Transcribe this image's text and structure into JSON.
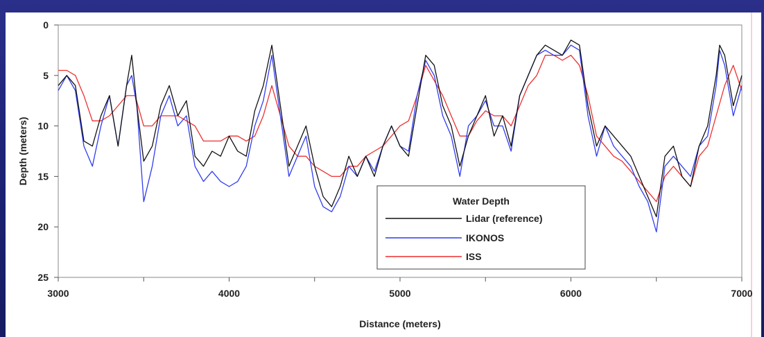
{
  "chart_data": {
    "type": "line",
    "title": "",
    "xlabel": "Distance (meters)",
    "ylabel": "Depth (meters)",
    "xlim": [
      3000,
      7000
    ],
    "ylim": [
      0,
      25
    ],
    "y_inverted": true,
    "x_ticks": [
      "3000",
      "4000",
      "5000",
      "6000",
      "7000"
    ],
    "y_ticks": [
      "0",
      "5",
      "10",
      "15",
      "20",
      "25"
    ],
    "grid": false,
    "legend": {
      "title": "Water Depth",
      "placement": "bottom-center"
    },
    "colors": {
      "lidar": "#111111",
      "ikonos": "#2f3cf0",
      "iss": "#ee2f2f"
    },
    "series": [
      {
        "name": "Lidar (reference)",
        "color": "#111111",
        "points": [
          [
            3000,
            6
          ],
          [
            3050,
            5
          ],
          [
            3100,
            6
          ],
          [
            3150,
            11.5
          ],
          [
            3200,
            12
          ],
          [
            3250,
            9
          ],
          [
            3300,
            7
          ],
          [
            3350,
            12
          ],
          [
            3400,
            6
          ],
          [
            3430,
            3
          ],
          [
            3460,
            8
          ],
          [
            3500,
            13.5
          ],
          [
            3550,
            12
          ],
          [
            3600,
            8
          ],
          [
            3650,
            6
          ],
          [
            3700,
            9
          ],
          [
            3750,
            7.5
          ],
          [
            3800,
            13
          ],
          [
            3850,
            14
          ],
          [
            3900,
            12.5
          ],
          [
            3950,
            13
          ],
          [
            4000,
            11
          ],
          [
            4050,
            12.5
          ],
          [
            4100,
            13
          ],
          [
            4150,
            8.5
          ],
          [
            4200,
            6
          ],
          [
            4250,
            2
          ],
          [
            4300,
            8
          ],
          [
            4350,
            14
          ],
          [
            4400,
            12
          ],
          [
            4450,
            10
          ],
          [
            4500,
            14
          ],
          [
            4550,
            17
          ],
          [
            4600,
            18
          ],
          [
            4650,
            16
          ],
          [
            4700,
            13
          ],
          [
            4750,
            15
          ],
          [
            4800,
            13
          ],
          [
            4850,
            15
          ],
          [
            4900,
            12
          ],
          [
            4950,
            10
          ],
          [
            5000,
            12
          ],
          [
            5050,
            13
          ],
          [
            5100,
            8
          ],
          [
            5150,
            3
          ],
          [
            5200,
            4
          ],
          [
            5250,
            8
          ],
          [
            5300,
            10
          ],
          [
            5350,
            14
          ],
          [
            5400,
            11
          ],
          [
            5450,
            9
          ],
          [
            5500,
            7
          ],
          [
            5550,
            11
          ],
          [
            5600,
            9
          ],
          [
            5650,
            12
          ],
          [
            5700,
            7
          ],
          [
            5750,
            5
          ],
          [
            5800,
            3
          ],
          [
            5850,
            2
          ],
          [
            5900,
            2.5
          ],
          [
            5950,
            3
          ],
          [
            6000,
            1.5
          ],
          [
            6050,
            2
          ],
          [
            6100,
            8
          ],
          [
            6150,
            12
          ],
          [
            6200,
            10
          ],
          [
            6250,
            11
          ],
          [
            6300,
            12
          ],
          [
            6350,
            13
          ],
          [
            6400,
            15
          ],
          [
            6450,
            17
          ],
          [
            6500,
            19
          ],
          [
            6550,
            13
          ],
          [
            6600,
            12
          ],
          [
            6650,
            15
          ],
          [
            6700,
            16
          ],
          [
            6750,
            12
          ],
          [
            6800,
            10
          ],
          [
            6850,
            5
          ],
          [
            6870,
            2
          ],
          [
            6900,
            3
          ],
          [
            6950,
            8
          ],
          [
            7000,
            5
          ]
        ]
      },
      {
        "name": "IKONOS",
        "color": "#2f3cf0",
        "points": [
          [
            3000,
            6.5
          ],
          [
            3050,
            5
          ],
          [
            3100,
            6.5
          ],
          [
            3150,
            12
          ],
          [
            3200,
            14
          ],
          [
            3250,
            10
          ],
          [
            3300,
            7
          ],
          [
            3350,
            12
          ],
          [
            3400,
            6
          ],
          [
            3430,
            5
          ],
          [
            3460,
            8
          ],
          [
            3500,
            17.5
          ],
          [
            3550,
            14
          ],
          [
            3600,
            9
          ],
          [
            3650,
            7
          ],
          [
            3700,
            10
          ],
          [
            3750,
            9
          ],
          [
            3800,
            14
          ],
          [
            3850,
            15.5
          ],
          [
            3900,
            14.5
          ],
          [
            3950,
            15.5
          ],
          [
            4000,
            16
          ],
          [
            4050,
            15.5
          ],
          [
            4100,
            14
          ],
          [
            4150,
            10
          ],
          [
            4200,
            7.5
          ],
          [
            4250,
            3
          ],
          [
            4300,
            9
          ],
          [
            4350,
            15
          ],
          [
            4400,
            13
          ],
          [
            4450,
            11
          ],
          [
            4500,
            16
          ],
          [
            4550,
            18
          ],
          [
            4600,
            18.5
          ],
          [
            4650,
            17
          ],
          [
            4700,
            14
          ],
          [
            4750,
            15
          ],
          [
            4800,
            13
          ],
          [
            4850,
            14.5
          ],
          [
            4900,
            12
          ],
          [
            4950,
            10
          ],
          [
            5000,
            12
          ],
          [
            5050,
            12.5
          ],
          [
            5100,
            7
          ],
          [
            5150,
            3.5
          ],
          [
            5200,
            5
          ],
          [
            5250,
            9
          ],
          [
            5300,
            11
          ],
          [
            5350,
            15
          ],
          [
            5400,
            10
          ],
          [
            5450,
            9
          ],
          [
            5500,
            7.5
          ],
          [
            5550,
            10
          ],
          [
            5600,
            10
          ],
          [
            5650,
            12.5
          ],
          [
            5700,
            7
          ],
          [
            5750,
            5
          ],
          [
            5800,
            3
          ],
          [
            5850,
            2.5
          ],
          [
            5900,
            3
          ],
          [
            5950,
            3
          ],
          [
            6000,
            2
          ],
          [
            6050,
            2.5
          ],
          [
            6100,
            9
          ],
          [
            6150,
            13
          ],
          [
            6200,
            10
          ],
          [
            6250,
            12
          ],
          [
            6300,
            13
          ],
          [
            6350,
            14
          ],
          [
            6400,
            16
          ],
          [
            6450,
            17.5
          ],
          [
            6500,
            20.5
          ],
          [
            6550,
            14
          ],
          [
            6600,
            13
          ],
          [
            6650,
            14
          ],
          [
            6700,
            15
          ],
          [
            6750,
            12
          ],
          [
            6800,
            11
          ],
          [
            6850,
            6
          ],
          [
            6870,
            2.5
          ],
          [
            6900,
            4
          ],
          [
            6950,
            9
          ],
          [
            7000,
            6
          ]
        ]
      },
      {
        "name": "ISS",
        "color": "#ee2f2f",
        "points": [
          [
            3000,
            4.5
          ],
          [
            3050,
            4.5
          ],
          [
            3100,
            5
          ],
          [
            3150,
            7
          ],
          [
            3200,
            9.5
          ],
          [
            3250,
            9.5
          ],
          [
            3300,
            9
          ],
          [
            3350,
            8
          ],
          [
            3400,
            7
          ],
          [
            3450,
            7
          ],
          [
            3500,
            10
          ],
          [
            3550,
            10
          ],
          [
            3600,
            9
          ],
          [
            3650,
            9
          ],
          [
            3700,
            9
          ],
          [
            3750,
            9.5
          ],
          [
            3800,
            10
          ],
          [
            3850,
            11.5
          ],
          [
            3900,
            11.5
          ],
          [
            3950,
            11.5
          ],
          [
            4000,
            11
          ],
          [
            4050,
            11
          ],
          [
            4100,
            11.5
          ],
          [
            4150,
            11
          ],
          [
            4200,
            9
          ],
          [
            4250,
            6
          ],
          [
            4300,
            9
          ],
          [
            4350,
            12
          ],
          [
            4400,
            13
          ],
          [
            4450,
            13
          ],
          [
            4500,
            14
          ],
          [
            4550,
            14.5
          ],
          [
            4600,
            15
          ],
          [
            4650,
            15
          ],
          [
            4700,
            14
          ],
          [
            4750,
            14
          ],
          [
            4800,
            13
          ],
          [
            4850,
            12.5
          ],
          [
            4900,
            12
          ],
          [
            4950,
            11
          ],
          [
            5000,
            10
          ],
          [
            5050,
            9.5
          ],
          [
            5100,
            7
          ],
          [
            5150,
            4
          ],
          [
            5200,
            5.5
          ],
          [
            5250,
            7
          ],
          [
            5300,
            9
          ],
          [
            5350,
            11
          ],
          [
            5400,
            11
          ],
          [
            5450,
            9.5
          ],
          [
            5500,
            8.5
          ],
          [
            5550,
            9
          ],
          [
            5600,
            9
          ],
          [
            5650,
            10
          ],
          [
            5700,
            8
          ],
          [
            5750,
            6
          ],
          [
            5800,
            5
          ],
          [
            5850,
            3
          ],
          [
            5900,
            3
          ],
          [
            5950,
            3.5
          ],
          [
            6000,
            3
          ],
          [
            6050,
            4
          ],
          [
            6100,
            7
          ],
          [
            6150,
            11
          ],
          [
            6200,
            12
          ],
          [
            6250,
            13
          ],
          [
            6300,
            13.5
          ],
          [
            6350,
            14.5
          ],
          [
            6400,
            15.5
          ],
          [
            6450,
            16.5
          ],
          [
            6500,
            17.5
          ],
          [
            6550,
            15
          ],
          [
            6600,
            14
          ],
          [
            6650,
            15
          ],
          [
            6700,
            16
          ],
          [
            6750,
            13
          ],
          [
            6800,
            12
          ],
          [
            6850,
            9
          ],
          [
            6900,
            6
          ],
          [
            6950,
            4
          ],
          [
            7000,
            6.5
          ]
        ]
      }
    ]
  }
}
